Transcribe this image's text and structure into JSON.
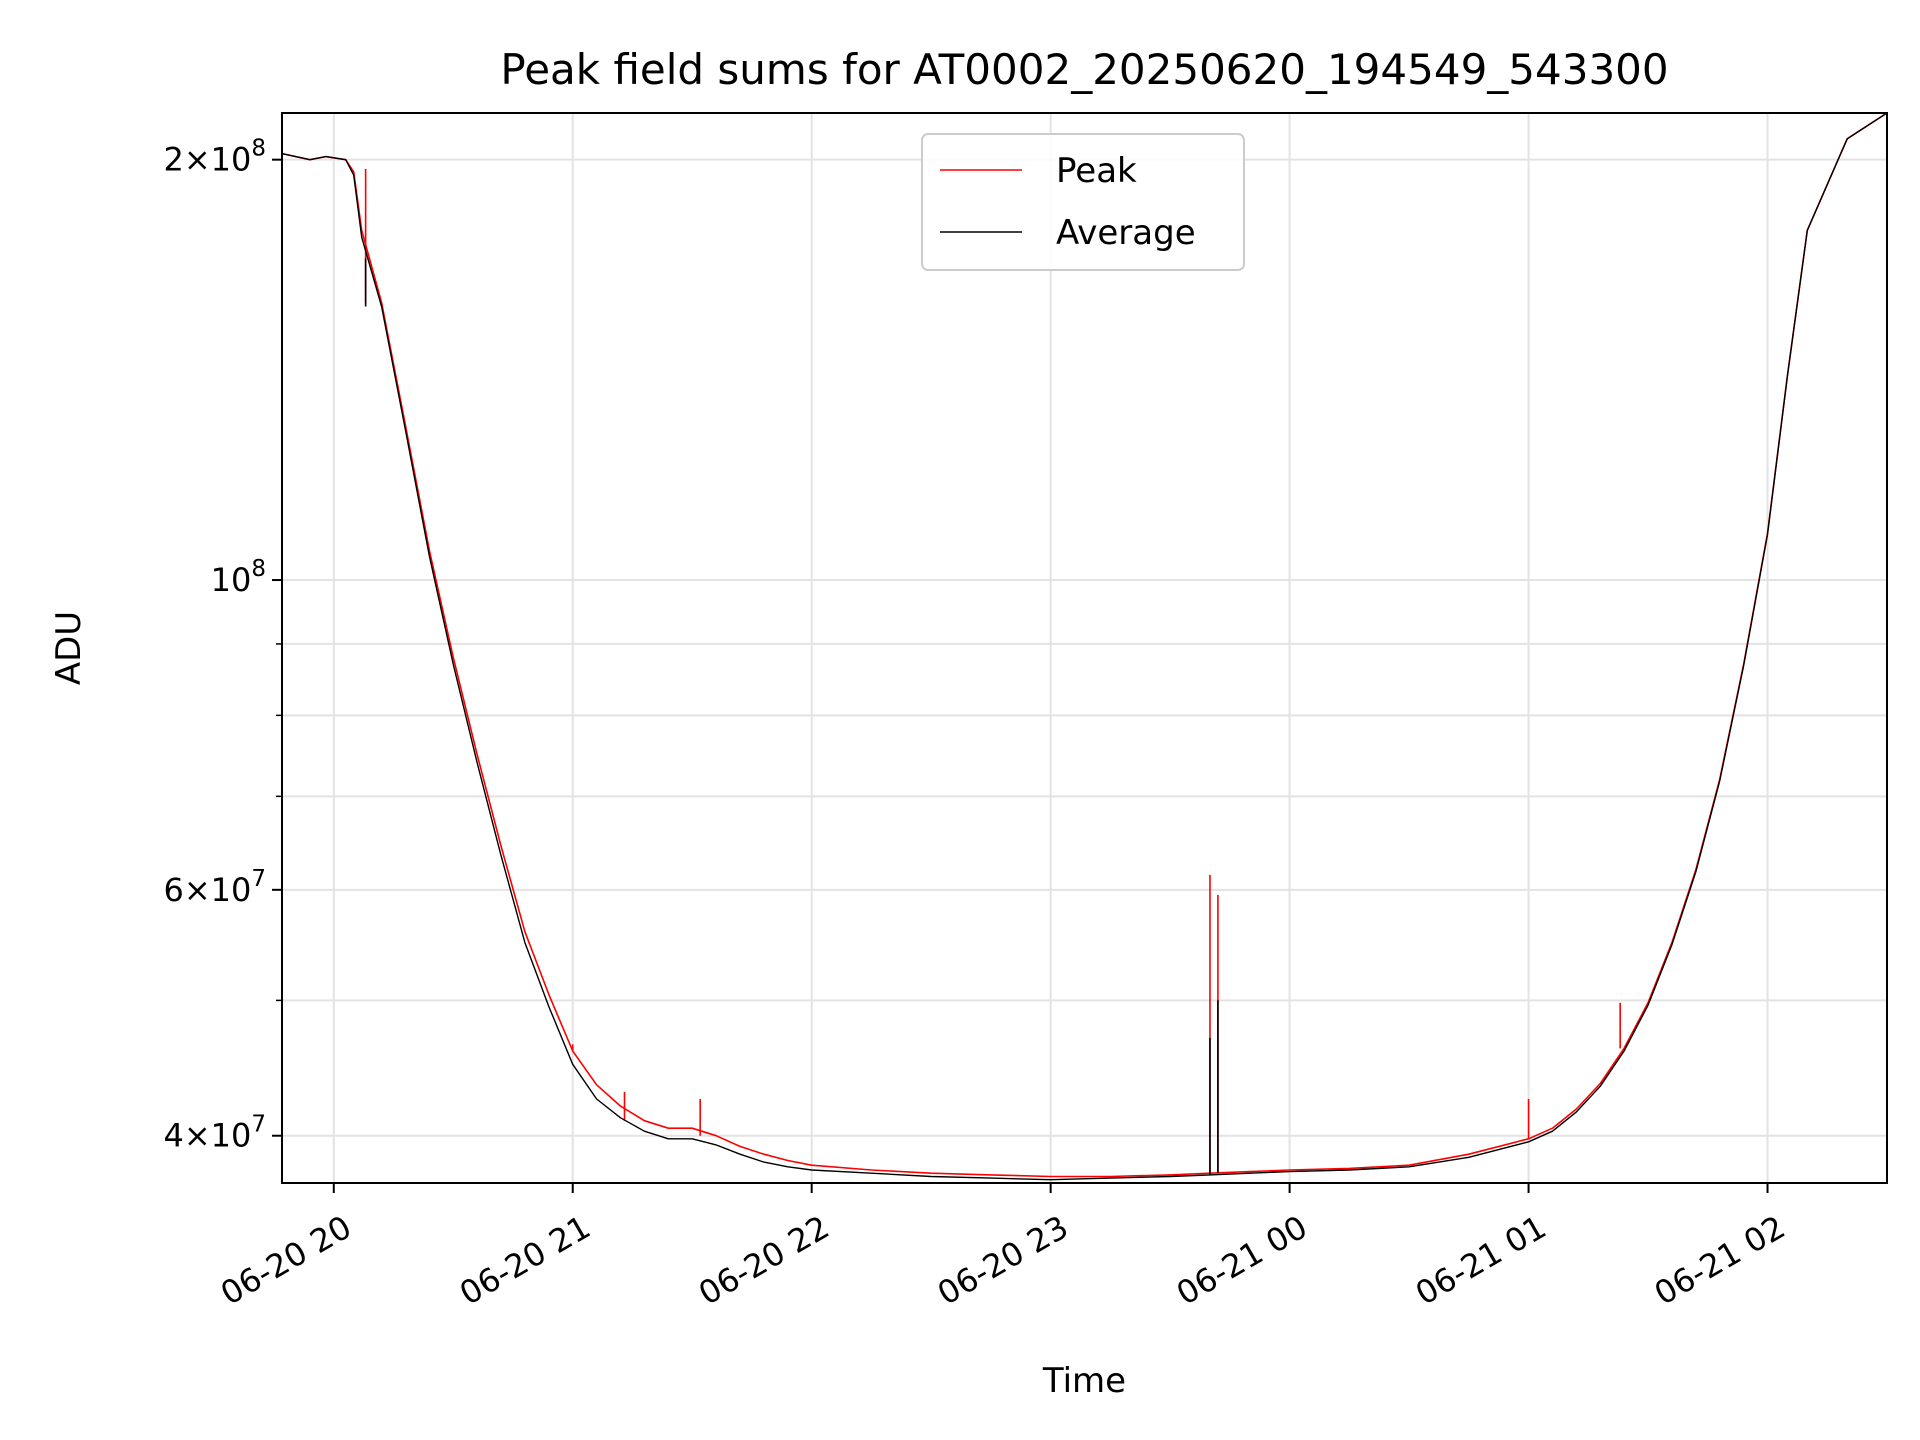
{
  "chart_data": {
    "type": "line",
    "title": "Peak field sums for AT0002_20250620_194549_543300",
    "xlabel": "Time",
    "ylabel": "ADU",
    "y_scale": "log",
    "grid": true,
    "legend_position": "upper center",
    "xlim": [
      "2025-06-20 19:47",
      "2025-06-21 02:30"
    ],
    "ylim": [
      37000000,
      216000000
    ],
    "x_ticks": [
      "06-20 20",
      "06-20 21",
      "06-20 22",
      "06-20 23",
      "06-21 00",
      "06-21 01",
      "06-21 02"
    ],
    "x_tick_times": [
      "2025-06-20 20:00",
      "2025-06-20 21:00",
      "2025-06-20 22:00",
      "2025-06-20 23:00",
      "2025-06-21 00:00",
      "2025-06-21 01:00",
      "2025-06-21 02:00"
    ],
    "y_ticks": [
      {
        "value": 40000000,
        "mantissa": "4",
        "exponent": "7"
      },
      {
        "value": 60000000,
        "mantissa": "6",
        "exponent": "7"
      },
      {
        "value": 100000000,
        "mantissa": "",
        "exponent": "8"
      },
      {
        "value": 200000000,
        "mantissa": "2",
        "exponent": "8"
      }
    ],
    "y_minor_ticks": [
      50000000,
      70000000,
      80000000,
      90000000
    ],
    "series": [
      {
        "name": "Peak",
        "color": "#ff0000",
        "x": [
          "2025-06-20 19:47",
          "2025-06-20 19:54",
          "2025-06-20 19:58",
          "2025-06-20 20:03",
          "2025-06-20 20:05",
          "2025-06-20 20:07",
          "2025-06-20 20:12",
          "2025-06-20 20:18",
          "2025-06-20 20:24",
          "2025-06-20 20:30",
          "2025-06-20 20:36",
          "2025-06-20 20:42",
          "2025-06-20 20:48",
          "2025-06-20 20:54",
          "2025-06-20 21:00",
          "2025-06-20 21:06",
          "2025-06-20 21:12",
          "2025-06-20 21:18",
          "2025-06-20 21:24",
          "2025-06-20 21:30",
          "2025-06-20 21:36",
          "2025-06-20 21:42",
          "2025-06-20 21:48",
          "2025-06-20 21:54",
          "2025-06-20 22:00",
          "2025-06-20 22:15",
          "2025-06-20 22:30",
          "2025-06-20 22:45",
          "2025-06-20 23:00",
          "2025-06-20 23:15",
          "2025-06-20 23:30",
          "2025-06-20 23:40",
          "2025-06-20 23:50",
          "2025-06-21 00:00",
          "2025-06-21 00:15",
          "2025-06-21 00:30",
          "2025-06-21 00:45",
          "2025-06-21 01:00",
          "2025-06-21 01:06",
          "2025-06-21 01:12",
          "2025-06-21 01:18",
          "2025-06-21 01:24",
          "2025-06-21 01:30",
          "2025-06-21 01:36",
          "2025-06-21 01:42",
          "2025-06-21 01:48",
          "2025-06-21 01:54",
          "2025-06-21 02:00",
          "2025-06-21 02:05",
          "2025-06-21 02:10",
          "2025-06-21 02:20",
          "2025-06-21 02:30"
        ],
        "values": [
          202000000,
          200000000,
          201000000,
          200000000,
          196000000,
          178000000,
          158000000,
          129000000,
          105000000,
          88000000,
          75000000,
          64500000,
          56000000,
          50500000,
          46000000,
          43500000,
          42000000,
          41000000,
          40500000,
          40500000,
          40000000,
          39300000,
          38800000,
          38400000,
          38100000,
          37800000,
          37600000,
          37500000,
          37400000,
          37400000,
          37500000,
          37600000,
          37700000,
          37800000,
          37900000,
          38100000,
          38800000,
          39800000,
          40500000,
          41800000,
          43600000,
          46200000,
          49800000,
          55000000,
          62000000,
          72000000,
          87000000,
          108000000,
          140000000,
          178000000,
          207000000,
          216000000
        ],
        "spikes": [
          {
            "x": "2025-06-20 20:08",
            "value": 197000000
          },
          {
            "x": "2025-06-20 21:00",
            "value": 46500000
          },
          {
            "x": "2025-06-20 21:13",
            "value": 43000000
          },
          {
            "x": "2025-06-20 21:32",
            "value": 42500000
          },
          {
            "x": "2025-06-20 23:40",
            "value": 61500000
          },
          {
            "x": "2025-06-20 23:42",
            "value": 59500000
          },
          {
            "x": "2025-06-21 01:00",
            "value": 42500000
          },
          {
            "x": "2025-06-21 01:23",
            "value": 49800000
          }
        ]
      },
      {
        "name": "Average",
        "color": "#000000",
        "x": [
          "2025-06-20 19:47",
          "2025-06-20 19:54",
          "2025-06-20 19:58",
          "2025-06-20 20:03",
          "2025-06-20 20:05",
          "2025-06-20 20:07",
          "2025-06-20 20:12",
          "2025-06-20 20:18",
          "2025-06-20 20:24",
          "2025-06-20 20:30",
          "2025-06-20 20:36",
          "2025-06-20 20:42",
          "2025-06-20 20:48",
          "2025-06-20 20:54",
          "2025-06-20 21:00",
          "2025-06-20 21:06",
          "2025-06-20 21:12",
          "2025-06-20 21:18",
          "2025-06-20 21:24",
          "2025-06-20 21:30",
          "2025-06-20 21:36",
          "2025-06-20 21:42",
          "2025-06-20 21:48",
          "2025-06-20 21:54",
          "2025-06-20 22:00",
          "2025-06-20 22:15",
          "2025-06-20 22:30",
          "2025-06-20 22:45",
          "2025-06-20 23:00",
          "2025-06-20 23:15",
          "2025-06-20 23:30",
          "2025-06-20 23:40",
          "2025-06-20 23:50",
          "2025-06-21 00:00",
          "2025-06-21 00:15",
          "2025-06-21 00:30",
          "2025-06-21 00:45",
          "2025-06-21 01:00",
          "2025-06-21 01:06",
          "2025-06-21 01:12",
          "2025-06-21 01:18",
          "2025-06-21 01:24",
          "2025-06-21 01:30",
          "2025-06-21 01:36",
          "2025-06-21 01:42",
          "2025-06-21 01:48",
          "2025-06-21 01:54",
          "2025-06-21 02:00",
          "2025-06-21 02:05",
          "2025-06-21 02:10",
          "2025-06-21 02:20",
          "2025-06-21 02:30"
        ],
        "values": [
          202000000,
          200000000,
          201000000,
          200000000,
          195000000,
          176000000,
          157000000,
          128000000,
          104000000,
          87000000,
          74000000,
          63500000,
          55000000,
          49500000,
          45000000,
          42500000,
          41200000,
          40300000,
          39800000,
          39800000,
          39400000,
          38800000,
          38300000,
          38000000,
          37800000,
          37600000,
          37400000,
          37300000,
          37200000,
          37300000,
          37400000,
          37500000,
          37600000,
          37700000,
          37800000,
          38000000,
          38600000,
          39600000,
          40300000,
          41600000,
          43400000,
          46000000,
          49600000,
          54800000,
          61800000,
          71800000,
          86800000,
          107800000,
          140000000,
          178000000,
          207000000,
          216000000
        ],
        "spikes": [
          {
            "x": "2025-06-20 20:08",
            "value": 170000000
          },
          {
            "x": "2025-06-20 23:40",
            "value": 47000000
          },
          {
            "x": "2025-06-20 23:42",
            "value": 50000000
          }
        ]
      }
    ]
  }
}
